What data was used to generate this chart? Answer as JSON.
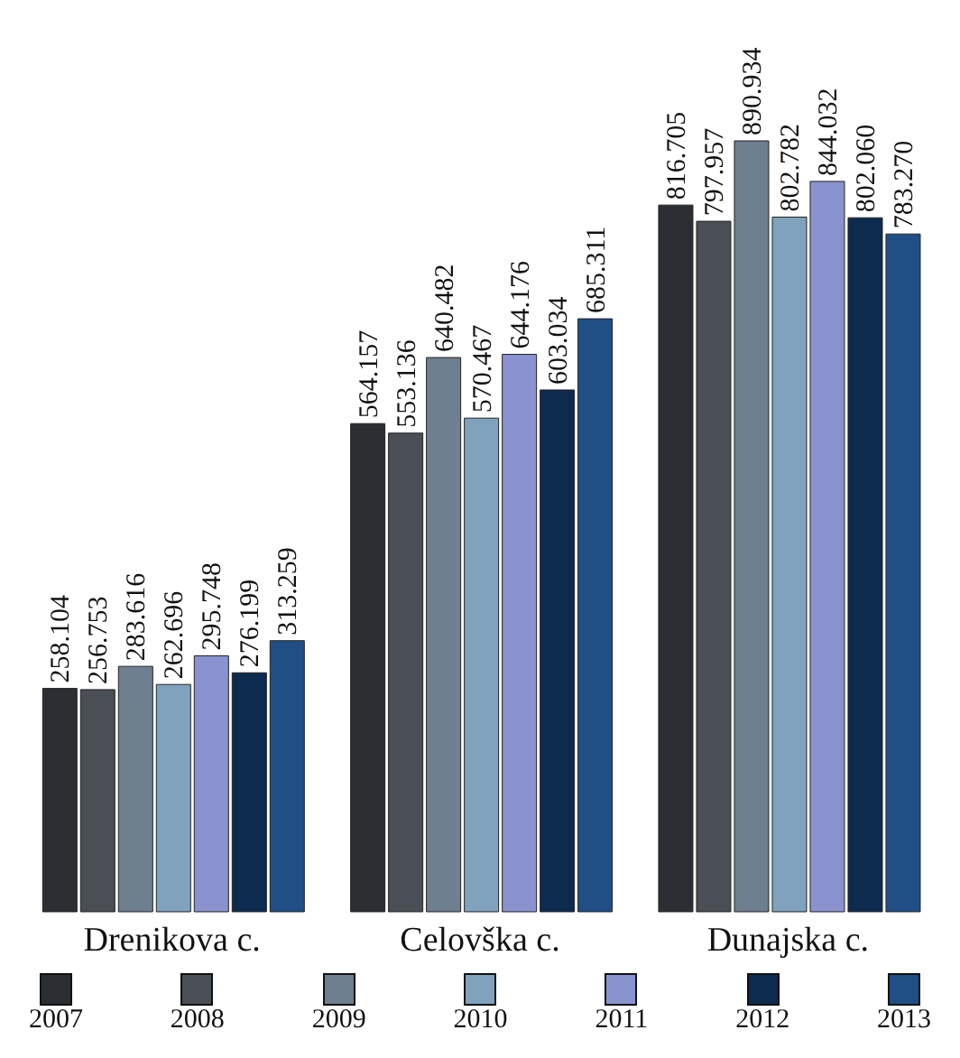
{
  "chart_data": {
    "type": "bar",
    "categories": [
      "Drenikova c.",
      "Celovška c.",
      "Dunajska c."
    ],
    "series": [
      {
        "name": "2007",
        "color": "#2b2f33",
        "values": [
          258.104,
          564.157,
          816.705
        ],
        "value_labels": [
          "258.104",
          "564.157",
          "816.705"
        ]
      },
      {
        "name": "2008",
        "color": "#4a4f55",
        "values": [
          256.753,
          553.136,
          797.957
        ],
        "value_labels": [
          "256.753",
          "553.136",
          "797.957"
        ]
      },
      {
        "name": "2009",
        "color": "#6e7f8f",
        "values": [
          283.616,
          640.482,
          890.934
        ],
        "value_labels": [
          "283.616",
          "640.482",
          "890.934"
        ]
      },
      {
        "name": "2010",
        "color": "#7fa3bd",
        "values": [
          262.696,
          570.467,
          802.782
        ],
        "value_labels": [
          "262.696",
          "570.467",
          "802.782"
        ]
      },
      {
        "name": "2011",
        "color": "#8a93cf",
        "values": [
          295.748,
          644.176,
          844.032
        ],
        "value_labels": [
          "295.748",
          "644.176",
          "844.032"
        ]
      },
      {
        "name": "2012",
        "color": "#0d2a4f",
        "values": [
          276.199,
          603.034,
          802.06
        ],
        "value_labels": [
          "276.199",
          "603.034",
          "802.060"
        ]
      },
      {
        "name": "2013",
        "color": "#1f4f85",
        "values": [
          313.259,
          685.311,
          783.27
        ],
        "value_labels": [
          "313.259",
          "685.311",
          "783.270"
        ]
      }
    ],
    "tick_labels": "x",
    "grid": false,
    "legend": "bottom"
  }
}
